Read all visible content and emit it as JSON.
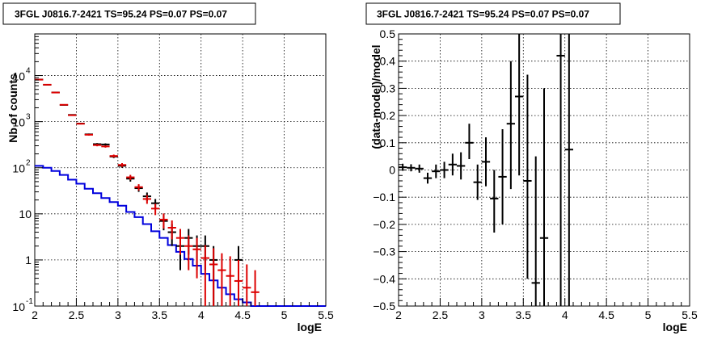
{
  "colors": {
    "data": "#000000",
    "model": "#dd0000",
    "background": "#0000dd"
  },
  "panels": {
    "left": {
      "title": "3FGL J0816.7-2421 TS=95.24 PS=0.07 PS=0.07",
      "xlabel": "logE",
      "ylabel": "Nb of counts",
      "xticks": [
        "2",
        "2.5",
        "3",
        "3.5",
        "4",
        "4.5",
        "5",
        "5.5"
      ],
      "ytick_labels": [
        {
          "value": 0.1,
          "base": "10",
          "exp": "-1",
          "text": "10"
        },
        {
          "value": 1,
          "text": "1"
        },
        {
          "value": 10,
          "text": "10"
        },
        {
          "value": 100,
          "base": "10",
          "exp": "2",
          "text": "10"
        },
        {
          "value": 1000,
          "base": "10",
          "exp": "3",
          "text": "10"
        },
        {
          "value": 10000,
          "base": "10",
          "exp": "4",
          "text": "10"
        }
      ],
      "exp_labels": [
        "2",
        "3",
        "4"
      ]
    },
    "right": {
      "title": "3FGL J0816.7-2421 TS=95.24 PS=0.07 PS=0.07",
      "xlabel": "logE",
      "ylabel": "(data-model)/model",
      "xticks": [
        "2",
        "2.5",
        "3",
        "3.5",
        "4",
        "4.5",
        "5",
        "5.5"
      ],
      "yticks": [
        "-0.5",
        "-0.4",
        "-0.3",
        "-0.2",
        "-0.1",
        "0",
        "0.1",
        "0.2",
        "0.3",
        "0.4",
        "0.5"
      ]
    }
  },
  "chart_data": [
    {
      "type": "scatter",
      "title": "3FGL J0816.7-2421 TS=95.24 PS=0.07 PS=0.07",
      "xlabel": "logE",
      "ylabel": "Nb of counts",
      "xlim": [
        2,
        5.5
      ],
      "ylim": [
        0.1,
        80000
      ],
      "yscale": "log",
      "grid": true,
      "bin_halfwidth": 0.05,
      "series": [
        {
          "type": "scatter",
          "points": [
            {
              "x": 2.05,
              "y": 8200,
              "lo": 8110,
              "hi": 8290
            },
            {
              "x": 2.15,
              "y": 6300,
              "lo": 6220,
              "hi": 6380
            },
            {
              "x": 2.25,
              "y": 4300,
              "lo": 4235,
              "hi": 4365
            },
            {
              "x": 2.35,
              "y": 2300,
              "lo": 2250,
              "hi": 2350
            },
            {
              "x": 2.45,
              "y": 1400,
              "lo": 1363,
              "hi": 1437
            },
            {
              "x": 2.55,
              "y": 910,
              "lo": 880,
              "hi": 940
            },
            {
              "x": 2.65,
              "y": 530,
              "lo": 507,
              "hi": 553
            },
            {
              "x": 2.75,
              "y": 325,
              "lo": 307,
              "hi": 343
            },
            {
              "x": 2.85,
              "y": 320,
              "lo": 302,
              "hi": 338
            },
            {
              "x": 2.95,
              "y": 175,
              "lo": 162,
              "hi": 188
            },
            {
              "x": 3.05,
              "y": 110,
              "lo": 100,
              "hi": 120
            },
            {
              "x": 3.15,
              "y": 58,
              "lo": 50,
              "hi": 66
            },
            {
              "x": 3.25,
              "y": 36,
              "lo": 30,
              "hi": 42
            },
            {
              "x": 3.35,
              "y": 24,
              "lo": 19,
              "hi": 29
            },
            {
              "x": 3.45,
              "y": 17,
              "lo": 13,
              "hi": 21
            },
            {
              "x": 3.55,
              "y": 7,
              "lo": 4.4,
              "hi": 9.6
            },
            {
              "x": 3.65,
              "y": 4,
              "lo": 2.0,
              "hi": 6.0
            },
            {
              "x": 3.75,
              "y": 2,
              "lo": 0.6,
              "hi": 3.4
            },
            {
              "x": 3.85,
              "y": 3,
              "lo": 1.3,
              "hi": 4.7
            },
            {
              "x": 3.95,
              "y": 2,
              "lo": 0.6,
              "hi": 3.4
            },
            {
              "x": 4.05,
              "y": 2,
              "lo": 0.6,
              "hi": 3.4
            },
            {
              "x": 4.15,
              "y": 1,
              "lo": 0.1,
              "hi": 2.0
            },
            {
              "x": 4.45,
              "y": 1,
              "lo": 0.1,
              "hi": 2.0
            }
          ]
        },
        {
          "type": "scatter",
          "points": [
            {
              "x": 2.05,
              "y": 8150,
              "lo": 8060,
              "hi": 8240
            },
            {
              "x": 2.15,
              "y": 6330,
              "lo": 6250,
              "hi": 6410
            },
            {
              "x": 2.25,
              "y": 4280,
              "lo": 4215,
              "hi": 4345
            },
            {
              "x": 2.35,
              "y": 2320,
              "lo": 2270,
              "hi": 2370
            },
            {
              "x": 2.45,
              "y": 1380,
              "lo": 1343,
              "hi": 1417
            },
            {
              "x": 2.55,
              "y": 900,
              "lo": 870,
              "hi": 930
            },
            {
              "x": 2.65,
              "y": 520,
              "lo": 497,
              "hi": 543
            },
            {
              "x": 2.75,
              "y": 310,
              "lo": 292,
              "hi": 328
            },
            {
              "x": 2.85,
              "y": 290,
              "lo": 273,
              "hi": 307
            },
            {
              "x": 2.95,
              "y": 180,
              "lo": 167,
              "hi": 193
            },
            {
              "x": 3.05,
              "y": 115,
              "lo": 104,
              "hi": 126
            },
            {
              "x": 3.15,
              "y": 62,
              "lo": 54,
              "hi": 70
            },
            {
              "x": 3.25,
              "y": 38,
              "lo": 32,
              "hi": 44
            },
            {
              "x": 3.35,
              "y": 21,
              "lo": 16.5,
              "hi": 25.5
            },
            {
              "x": 3.45,
              "y": 13,
              "lo": 9.4,
              "hi": 16.6
            },
            {
              "x": 3.55,
              "y": 7.5,
              "lo": 4.8,
              "hi": 10.2
            },
            {
              "x": 3.65,
              "y": 5,
              "lo": 2.8,
              "hi": 7.2
            },
            {
              "x": 3.75,
              "y": 3,
              "lo": 1.3,
              "hi": 4.7
            },
            {
              "x": 3.85,
              "y": 2,
              "lo": 0.6,
              "hi": 3.4
            },
            {
              "x": 3.95,
              "y": 1.7,
              "lo": 0.4,
              "hi": 3.0
            },
            {
              "x": 4.05,
              "y": 1.1,
              "lo": 0.1,
              "hi": 2.1
            },
            {
              "x": 4.15,
              "y": 0.8,
              "lo": 0.1,
              "hi": 1.8
            },
            {
              "x": 4.25,
              "y": 0.6,
              "lo": 0.1,
              "hi": 1.4
            },
            {
              "x": 4.35,
              "y": 0.45,
              "lo": 0.1,
              "hi": 1.2
            },
            {
              "x": 4.45,
              "y": 0.35,
              "lo": 0.1,
              "hi": 1.0
            },
            {
              "x": 4.55,
              "y": 0.25,
              "lo": 0.1,
              "hi": 0.8
            },
            {
              "x": 4.65,
              "y": 0.2,
              "lo": 0.1,
              "hi": 0.6
            }
          ]
        },
        {
          "type": "step",
          "edges": [
            2.0,
            2.1,
            2.2,
            2.3,
            2.4,
            2.5,
            2.6,
            2.7,
            2.8,
            2.9,
            3.0,
            3.1,
            3.2,
            3.3,
            3.4,
            3.5,
            3.6,
            3.7,
            3.8,
            3.9,
            4.0,
            4.1,
            4.2,
            4.3,
            4.4,
            4.5,
            4.6,
            4.7,
            4.8,
            4.9,
            5.0,
            5.1,
            5.2,
            5.3,
            5.4,
            5.5
          ],
          "values": [
            110,
            100,
            85,
            70,
            55,
            45,
            35,
            28,
            22,
            18,
            15,
            11,
            8.5,
            6,
            4.2,
            3,
            2.1,
            1.5,
            1.05,
            0.75,
            0.5,
            0.36,
            0.25,
            0.18,
            0.14,
            0.12,
            0.1,
            0.1,
            0.1,
            0.1,
            0.1,
            0.1,
            0.1,
            0.1,
            0.1
          ]
        }
      ]
    },
    {
      "type": "scatter",
      "title": "3FGL J0816.7-2421 TS=95.24 PS=0.07 PS=0.07",
      "xlabel": "logE",
      "ylabel": "(data-model)/model",
      "xlim": [
        2,
        5.5
      ],
      "ylim": [
        -0.5,
        0.5
      ],
      "grid": true,
      "bin_halfwidth": 0.05,
      "points": [
        {
          "x": 2.05,
          "y": 0.01,
          "lo": -0.003,
          "hi": 0.023
        },
        {
          "x": 2.15,
          "y": 0.008,
          "lo": -0.005,
          "hi": 0.021
        },
        {
          "x": 2.25,
          "y": 0.005,
          "lo": -0.01,
          "hi": 0.02
        },
        {
          "x": 2.35,
          "y": -0.03,
          "lo": -0.05,
          "hi": -0.01
        },
        {
          "x": 2.45,
          "y": -0.005,
          "lo": -0.03,
          "hi": 0.02
        },
        {
          "x": 2.55,
          "y": 0.0,
          "lo": -0.03,
          "hi": 0.03
        },
        {
          "x": 2.65,
          "y": 0.02,
          "lo": -0.02,
          "hi": 0.06
        },
        {
          "x": 2.75,
          "y": 0.015,
          "lo": -0.035,
          "hi": 0.065
        },
        {
          "x": 2.85,
          "y": 0.1,
          "lo": 0.04,
          "hi": 0.17
        },
        {
          "x": 2.95,
          "y": -0.045,
          "lo": -0.11,
          "hi": 0.02
        },
        {
          "x": 3.05,
          "y": 0.03,
          "lo": -0.06,
          "hi": 0.12
        },
        {
          "x": 3.15,
          "y": -0.105,
          "lo": -0.23,
          "hi": 0.0
        },
        {
          "x": 3.25,
          "y": -0.025,
          "lo": -0.2,
          "hi": 0.15
        },
        {
          "x": 3.35,
          "y": 0.17,
          "lo": -0.07,
          "hi": 0.4
        },
        {
          "x": 3.45,
          "y": 0.27,
          "lo": -0.02,
          "hi": 0.5
        },
        {
          "x": 3.55,
          "y": -0.04,
          "lo": -0.4,
          "hi": 0.35
        },
        {
          "x": 3.65,
          "y": -0.415,
          "lo": -0.5,
          "hi": 0.05
        },
        {
          "x": 3.75,
          "y": -0.25,
          "lo": -0.5,
          "hi": 0.3
        },
        {
          "x": 3.95,
          "y": 0.42,
          "lo": -0.5,
          "hi": 0.5
        },
        {
          "x": 4.05,
          "y": 0.075,
          "lo": -0.5,
          "hi": 0.5
        }
      ]
    }
  ]
}
